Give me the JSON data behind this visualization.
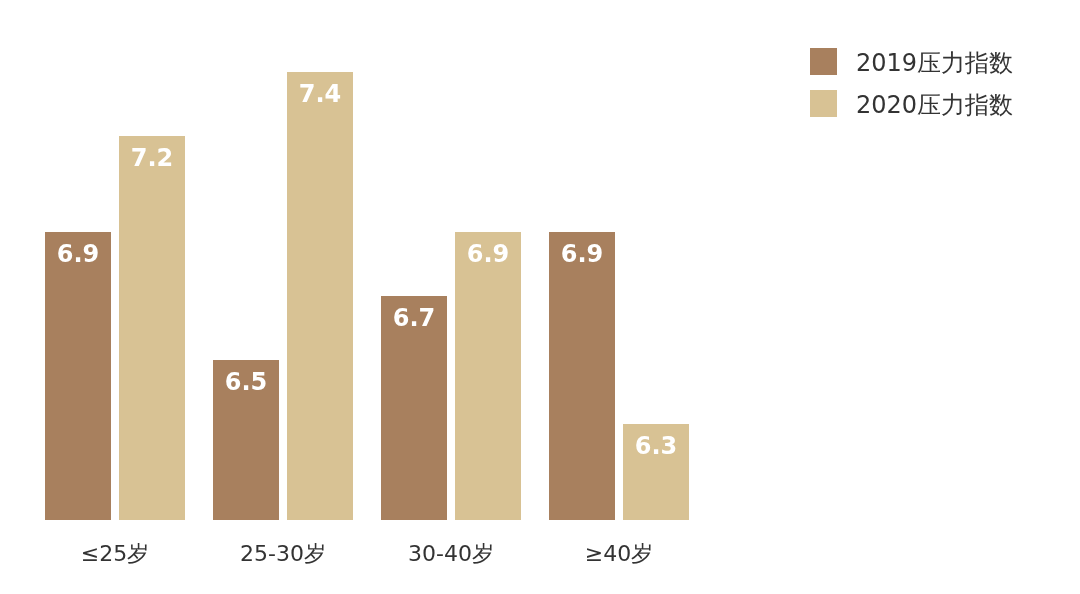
{
  "chart_data": {
    "type": "bar",
    "categories": [
      "≤25岁",
      "25-30岁",
      "30-40岁",
      "≥40岁"
    ],
    "series": [
      {
        "name": "2019压力指数",
        "color": "#a8805e",
        "values": [
          6.9,
          6.5,
          6.7,
          6.9
        ]
      },
      {
        "name": "2020压力指数",
        "color": "#d8c294",
        "values": [
          7.2,
          7.4,
          6.9,
          6.3
        ]
      }
    ],
    "ylim": [
      6,
      7.4
    ],
    "data_labels": true,
    "legend": "top right",
    "tick_labels": "x"
  }
}
